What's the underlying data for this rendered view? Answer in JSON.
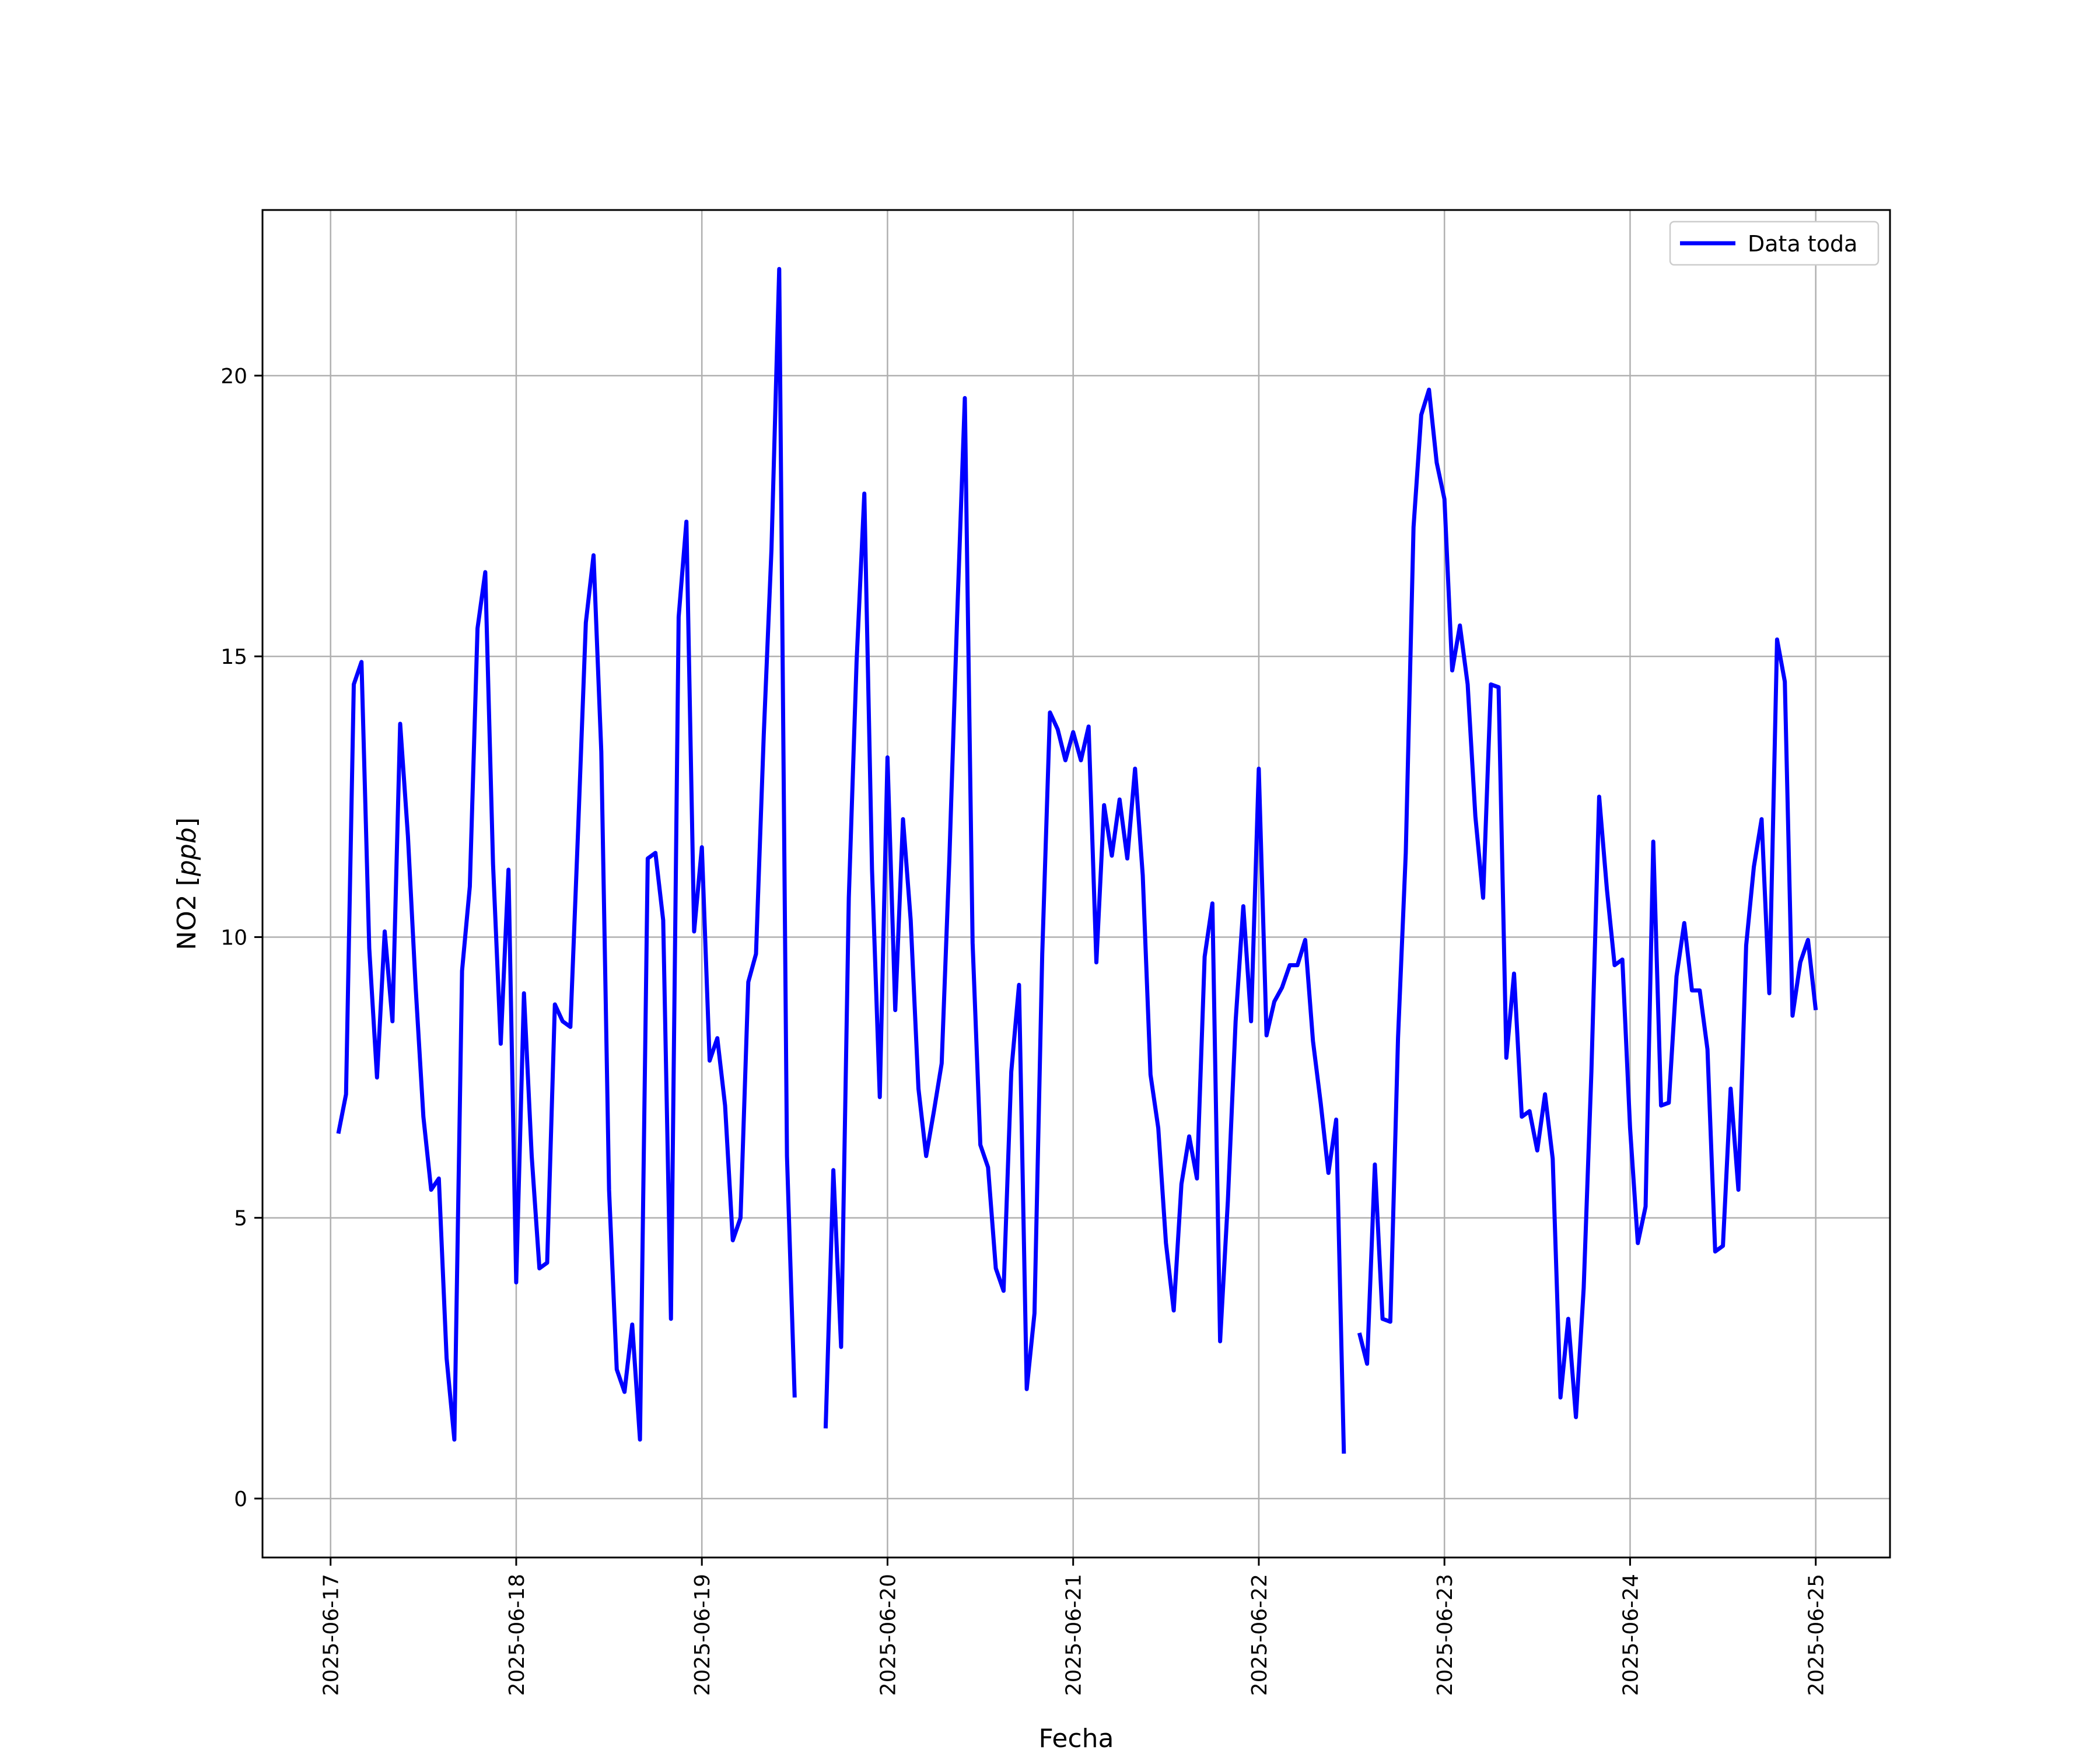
{
  "chart_data": {
    "type": "line",
    "title": "",
    "xlabel": "Fecha",
    "ylabel": "NO2 [ppb]",
    "ylabel_unit": "ppb",
    "ylim": [
      -1.05,
      22.95
    ],
    "xlim": [
      "2025-06-16T15:12",
      "2025-06-25T09:36"
    ],
    "x_ticks": [
      "2025-06-17",
      "2025-06-18",
      "2025-06-19",
      "2025-06-20",
      "2025-06-21",
      "2025-06-22",
      "2025-06-23",
      "2025-06-24",
      "2025-06-25"
    ],
    "y_ticks": [
      "0",
      "5",
      "10",
      "15",
      "20"
    ],
    "y_tick_values": [
      0,
      5,
      10,
      15,
      20
    ],
    "grid": true,
    "legend": {
      "position": "top-right",
      "entries": [
        "Data toda"
      ]
    },
    "series": [
      {
        "name": "Data toda",
        "color": "#0000ff",
        "points": [
          [
            "2025-06-17T01:00",
            6.5
          ],
          [
            "2025-06-17T02:00",
            7.2
          ],
          [
            "2025-06-17T03:00",
            14.5
          ],
          [
            "2025-06-17T04:00",
            14.9
          ],
          [
            "2025-06-17T05:00",
            9.8
          ],
          [
            "2025-06-17T06:00",
            7.5
          ],
          [
            "2025-06-17T07:00",
            10.1
          ],
          [
            "2025-06-17T08:00",
            8.5
          ],
          [
            "2025-06-17T09:00",
            13.8
          ],
          [
            "2025-06-17T10:00",
            11.8
          ],
          [
            "2025-06-17T11:00",
            9.1
          ],
          [
            "2025-06-17T12:00",
            6.8
          ],
          [
            "2025-06-17T13:00",
            5.5
          ],
          [
            "2025-06-17T14:00",
            5.7
          ],
          [
            "2025-06-17T15:00",
            2.5
          ],
          [
            "2025-06-17T16:00",
            1.05
          ],
          [
            "2025-06-17T17:00",
            9.4
          ],
          [
            "2025-06-17T18:00",
            10.9
          ],
          [
            "2025-06-17T19:00",
            15.5
          ],
          [
            "2025-06-17T20:00",
            16.5
          ],
          [
            "2025-06-17T21:00",
            11.3
          ],
          [
            "2025-06-17T22:00",
            8.1
          ],
          [
            "2025-06-17T23:00",
            11.2
          ],
          [
            "2025-06-18T00:00",
            3.85
          ],
          [
            "2025-06-18T01:00",
            9.0
          ],
          [
            "2025-06-18T02:00",
            6.1
          ],
          [
            "2025-06-18T03:00",
            4.1
          ],
          [
            "2025-06-18T04:00",
            4.2
          ],
          [
            "2025-06-18T05:00",
            8.8
          ],
          [
            "2025-06-18T06:00",
            8.5
          ],
          [
            "2025-06-18T07:00",
            8.4
          ],
          [
            "2025-06-18T08:00",
            11.9
          ],
          [
            "2025-06-18T09:00",
            15.6
          ],
          [
            "2025-06-18T10:00",
            16.8
          ],
          [
            "2025-06-18T11:00",
            13.3
          ],
          [
            "2025-06-18T12:00",
            5.5
          ],
          [
            "2025-06-18T13:00",
            2.3
          ],
          [
            "2025-06-18T14:00",
            1.9
          ],
          [
            "2025-06-18T15:00",
            3.1
          ],
          [
            "2025-06-18T16:00",
            1.05
          ],
          [
            "2025-06-18T17:00",
            11.4
          ],
          [
            "2025-06-18T18:00",
            11.5
          ],
          [
            "2025-06-18T19:00",
            10.3
          ],
          [
            "2025-06-18T20:00",
            3.2
          ],
          [
            "2025-06-18T21:00",
            15.7
          ],
          [
            "2025-06-18T22:00",
            17.4
          ],
          [
            "2025-06-18T23:00",
            10.1
          ],
          [
            "2025-06-19T00:00",
            11.6
          ],
          [
            "2025-06-19T01:00",
            7.8
          ],
          [
            "2025-06-19T02:00",
            8.2
          ],
          [
            "2025-06-19T03:00",
            7.0
          ],
          [
            "2025-06-19T04:00",
            4.6
          ],
          [
            "2025-06-19T05:00",
            5.0
          ],
          [
            "2025-06-19T06:00",
            9.2
          ],
          [
            "2025-06-19T07:00",
            9.7
          ],
          [
            "2025-06-19T08:00",
            13.6
          ],
          [
            "2025-06-19T09:00",
            16.9
          ],
          [
            "2025-06-19T10:00",
            21.9
          ],
          [
            "2025-06-19T11:00",
            6.1
          ],
          [
            "2025-06-19T12:00",
            1.8
          ],
          [
            "2025-06-19T13:00",
            null
          ],
          [
            "2025-06-19T14:00",
            null
          ],
          [
            "2025-06-19T15:00",
            null
          ],
          [
            "2025-06-19T16:00",
            1.25
          ],
          [
            "2025-06-19T17:00",
            5.85
          ],
          [
            "2025-06-19T18:00",
            2.7
          ],
          [
            "2025-06-19T19:00",
            10.7
          ],
          [
            "2025-06-19T20:00",
            14.9
          ],
          [
            "2025-06-19T21:00",
            17.9
          ],
          [
            "2025-06-19T22:00",
            11.2
          ],
          [
            "2025-06-19T23:00",
            7.15
          ],
          [
            "2025-06-20T00:00",
            13.2
          ],
          [
            "2025-06-20T01:00",
            8.7
          ],
          [
            "2025-06-20T02:00",
            12.1
          ],
          [
            "2025-06-20T03:00",
            10.3
          ],
          [
            "2025-06-20T04:00",
            7.3
          ],
          [
            "2025-06-20T05:00",
            6.1
          ],
          [
            "2025-06-20T06:00",
            6.9
          ],
          [
            "2025-06-20T07:00",
            7.75
          ],
          [
            "2025-06-20T08:00",
            11.4
          ],
          [
            "2025-06-20T09:00",
            15.7
          ],
          [
            "2025-06-20T10:00",
            19.6
          ],
          [
            "2025-06-20T11:00",
            9.9
          ],
          [
            "2025-06-20T12:00",
            6.3
          ],
          [
            "2025-06-20T13:00",
            5.9
          ],
          [
            "2025-06-20T14:00",
            4.1
          ],
          [
            "2025-06-20T15:00",
            3.7
          ],
          [
            "2025-06-20T16:00",
            7.6
          ],
          [
            "2025-06-20T17:00",
            9.15
          ],
          [
            "2025-06-20T18:00",
            1.95
          ],
          [
            "2025-06-20T19:00",
            3.3
          ],
          [
            "2025-06-20T20:00",
            9.7
          ],
          [
            "2025-06-20T21:00",
            14.0
          ],
          [
            "2025-06-20T22:00",
            13.7
          ],
          [
            "2025-06-20T23:00",
            13.15
          ],
          [
            "2025-06-21T00:00",
            13.65
          ],
          [
            "2025-06-21T01:00",
            13.15
          ],
          [
            "2025-06-21T02:00",
            13.75
          ],
          [
            "2025-06-21T03:00",
            9.55
          ],
          [
            "2025-06-21T04:00",
            12.35
          ],
          [
            "2025-06-21T05:00",
            11.45
          ],
          [
            "2025-06-21T06:00",
            12.45
          ],
          [
            "2025-06-21T07:00",
            11.4
          ],
          [
            "2025-06-21T08:00",
            13.0
          ],
          [
            "2025-06-21T09:00",
            11.1
          ],
          [
            "2025-06-21T10:00",
            7.55
          ],
          [
            "2025-06-21T11:00",
            6.6
          ],
          [
            "2025-06-21T12:00",
            4.55
          ],
          [
            "2025-06-21T13:00",
            3.35
          ],
          [
            "2025-06-21T14:00",
            5.6
          ],
          [
            "2025-06-21T15:00",
            6.45
          ],
          [
            "2025-06-21T16:00",
            5.7
          ],
          [
            "2025-06-21T17:00",
            9.65
          ],
          [
            "2025-06-21T18:00",
            10.6
          ],
          [
            "2025-06-21T19:00",
            2.8
          ],
          [
            "2025-06-21T20:00",
            5.3
          ],
          [
            "2025-06-21T21:00",
            8.5
          ],
          [
            "2025-06-21T22:00",
            10.55
          ],
          [
            "2025-06-21T23:00",
            8.5
          ],
          [
            "2025-06-22T00:00",
            13.0
          ],
          [
            "2025-06-22T01:00",
            8.25
          ],
          [
            "2025-06-22T02:00",
            8.85
          ],
          [
            "2025-06-22T03:00",
            9.1
          ],
          [
            "2025-06-22T04:00",
            9.5
          ],
          [
            "2025-06-22T05:00",
            9.5
          ],
          [
            "2025-06-22T06:00",
            9.95
          ],
          [
            "2025-06-22T07:00",
            8.15
          ],
          [
            "2025-06-22T08:00",
            7.05
          ],
          [
            "2025-06-22T09:00",
            5.8
          ],
          [
            "2025-06-22T10:00",
            6.75
          ],
          [
            "2025-06-22T11:00",
            0.8
          ],
          [
            "2025-06-22T12:00",
            null
          ],
          [
            "2025-06-22T13:00",
            2.95
          ],
          [
            "2025-06-22T14:00",
            2.4
          ],
          [
            "2025-06-22T15:00",
            5.95
          ],
          [
            "2025-06-22T16:00",
            3.2
          ],
          [
            "2025-06-22T17:00",
            3.15
          ],
          [
            "2025-06-22T18:00",
            8.2
          ],
          [
            "2025-06-22T19:00",
            11.5
          ],
          [
            "2025-06-22T20:00",
            17.3
          ],
          [
            "2025-06-22T21:00",
            19.3
          ],
          [
            "2025-06-22T22:00",
            19.75
          ],
          [
            "2025-06-22T23:00",
            18.45
          ],
          [
            "2025-06-23T00:00",
            17.8
          ],
          [
            "2025-06-23T01:00",
            14.75
          ],
          [
            "2025-06-23T02:00",
            15.55
          ],
          [
            "2025-06-23T03:00",
            14.5
          ],
          [
            "2025-06-23T04:00",
            12.15
          ],
          [
            "2025-06-23T05:00",
            10.7
          ],
          [
            "2025-06-23T06:00",
            14.5
          ],
          [
            "2025-06-23T07:00",
            14.45
          ],
          [
            "2025-06-23T08:00",
            7.85
          ],
          [
            "2025-06-23T09:00",
            9.35
          ],
          [
            "2025-06-23T10:00",
            6.8
          ],
          [
            "2025-06-23T11:00",
            6.9
          ],
          [
            "2025-06-23T12:00",
            6.2
          ],
          [
            "2025-06-23T13:00",
            7.2
          ],
          [
            "2025-06-23T14:00",
            6.05
          ],
          [
            "2025-06-23T15:00",
            1.8
          ],
          [
            "2025-06-23T16:00",
            3.2
          ],
          [
            "2025-06-23T17:00",
            1.45
          ],
          [
            "2025-06-23T18:00",
            3.75
          ],
          [
            "2025-06-23T19:00",
            7.6
          ],
          [
            "2025-06-23T20:00",
            12.5
          ],
          [
            "2025-06-23T21:00",
            10.85
          ],
          [
            "2025-06-23T22:00",
            9.5
          ],
          [
            "2025-06-23T23:00",
            9.6
          ],
          [
            "2025-06-24T00:00",
            6.6
          ],
          [
            "2025-06-24T01:00",
            4.55
          ],
          [
            "2025-06-24T02:00",
            5.2
          ],
          [
            "2025-06-24T03:00",
            11.7
          ],
          [
            "2025-06-24T04:00",
            7.0
          ],
          [
            "2025-06-24T05:00",
            7.05
          ],
          [
            "2025-06-24T06:00",
            9.3
          ],
          [
            "2025-06-24T07:00",
            10.25
          ],
          [
            "2025-06-24T08:00",
            9.05
          ],
          [
            "2025-06-24T09:00",
            9.05
          ],
          [
            "2025-06-24T10:00",
            8.0
          ],
          [
            "2025-06-24T11:00",
            4.4
          ],
          [
            "2025-06-24T12:00",
            4.5
          ],
          [
            "2025-06-24T13:00",
            7.3
          ],
          [
            "2025-06-24T14:00",
            5.5
          ],
          [
            "2025-06-24T15:00",
            9.85
          ],
          [
            "2025-06-24T16:00",
            11.25
          ],
          [
            "2025-06-24T17:00",
            12.1
          ],
          [
            "2025-06-24T18:00",
            9.0
          ],
          [
            "2025-06-24T19:00",
            15.3
          ],
          [
            "2025-06-24T20:00",
            14.55
          ],
          [
            "2025-06-24T21:00",
            8.6
          ],
          [
            "2025-06-24T22:00",
            9.55
          ],
          [
            "2025-06-24T23:00",
            9.95
          ],
          [
            "2025-06-25T00:00",
            8.7
          ]
        ]
      }
    ]
  }
}
